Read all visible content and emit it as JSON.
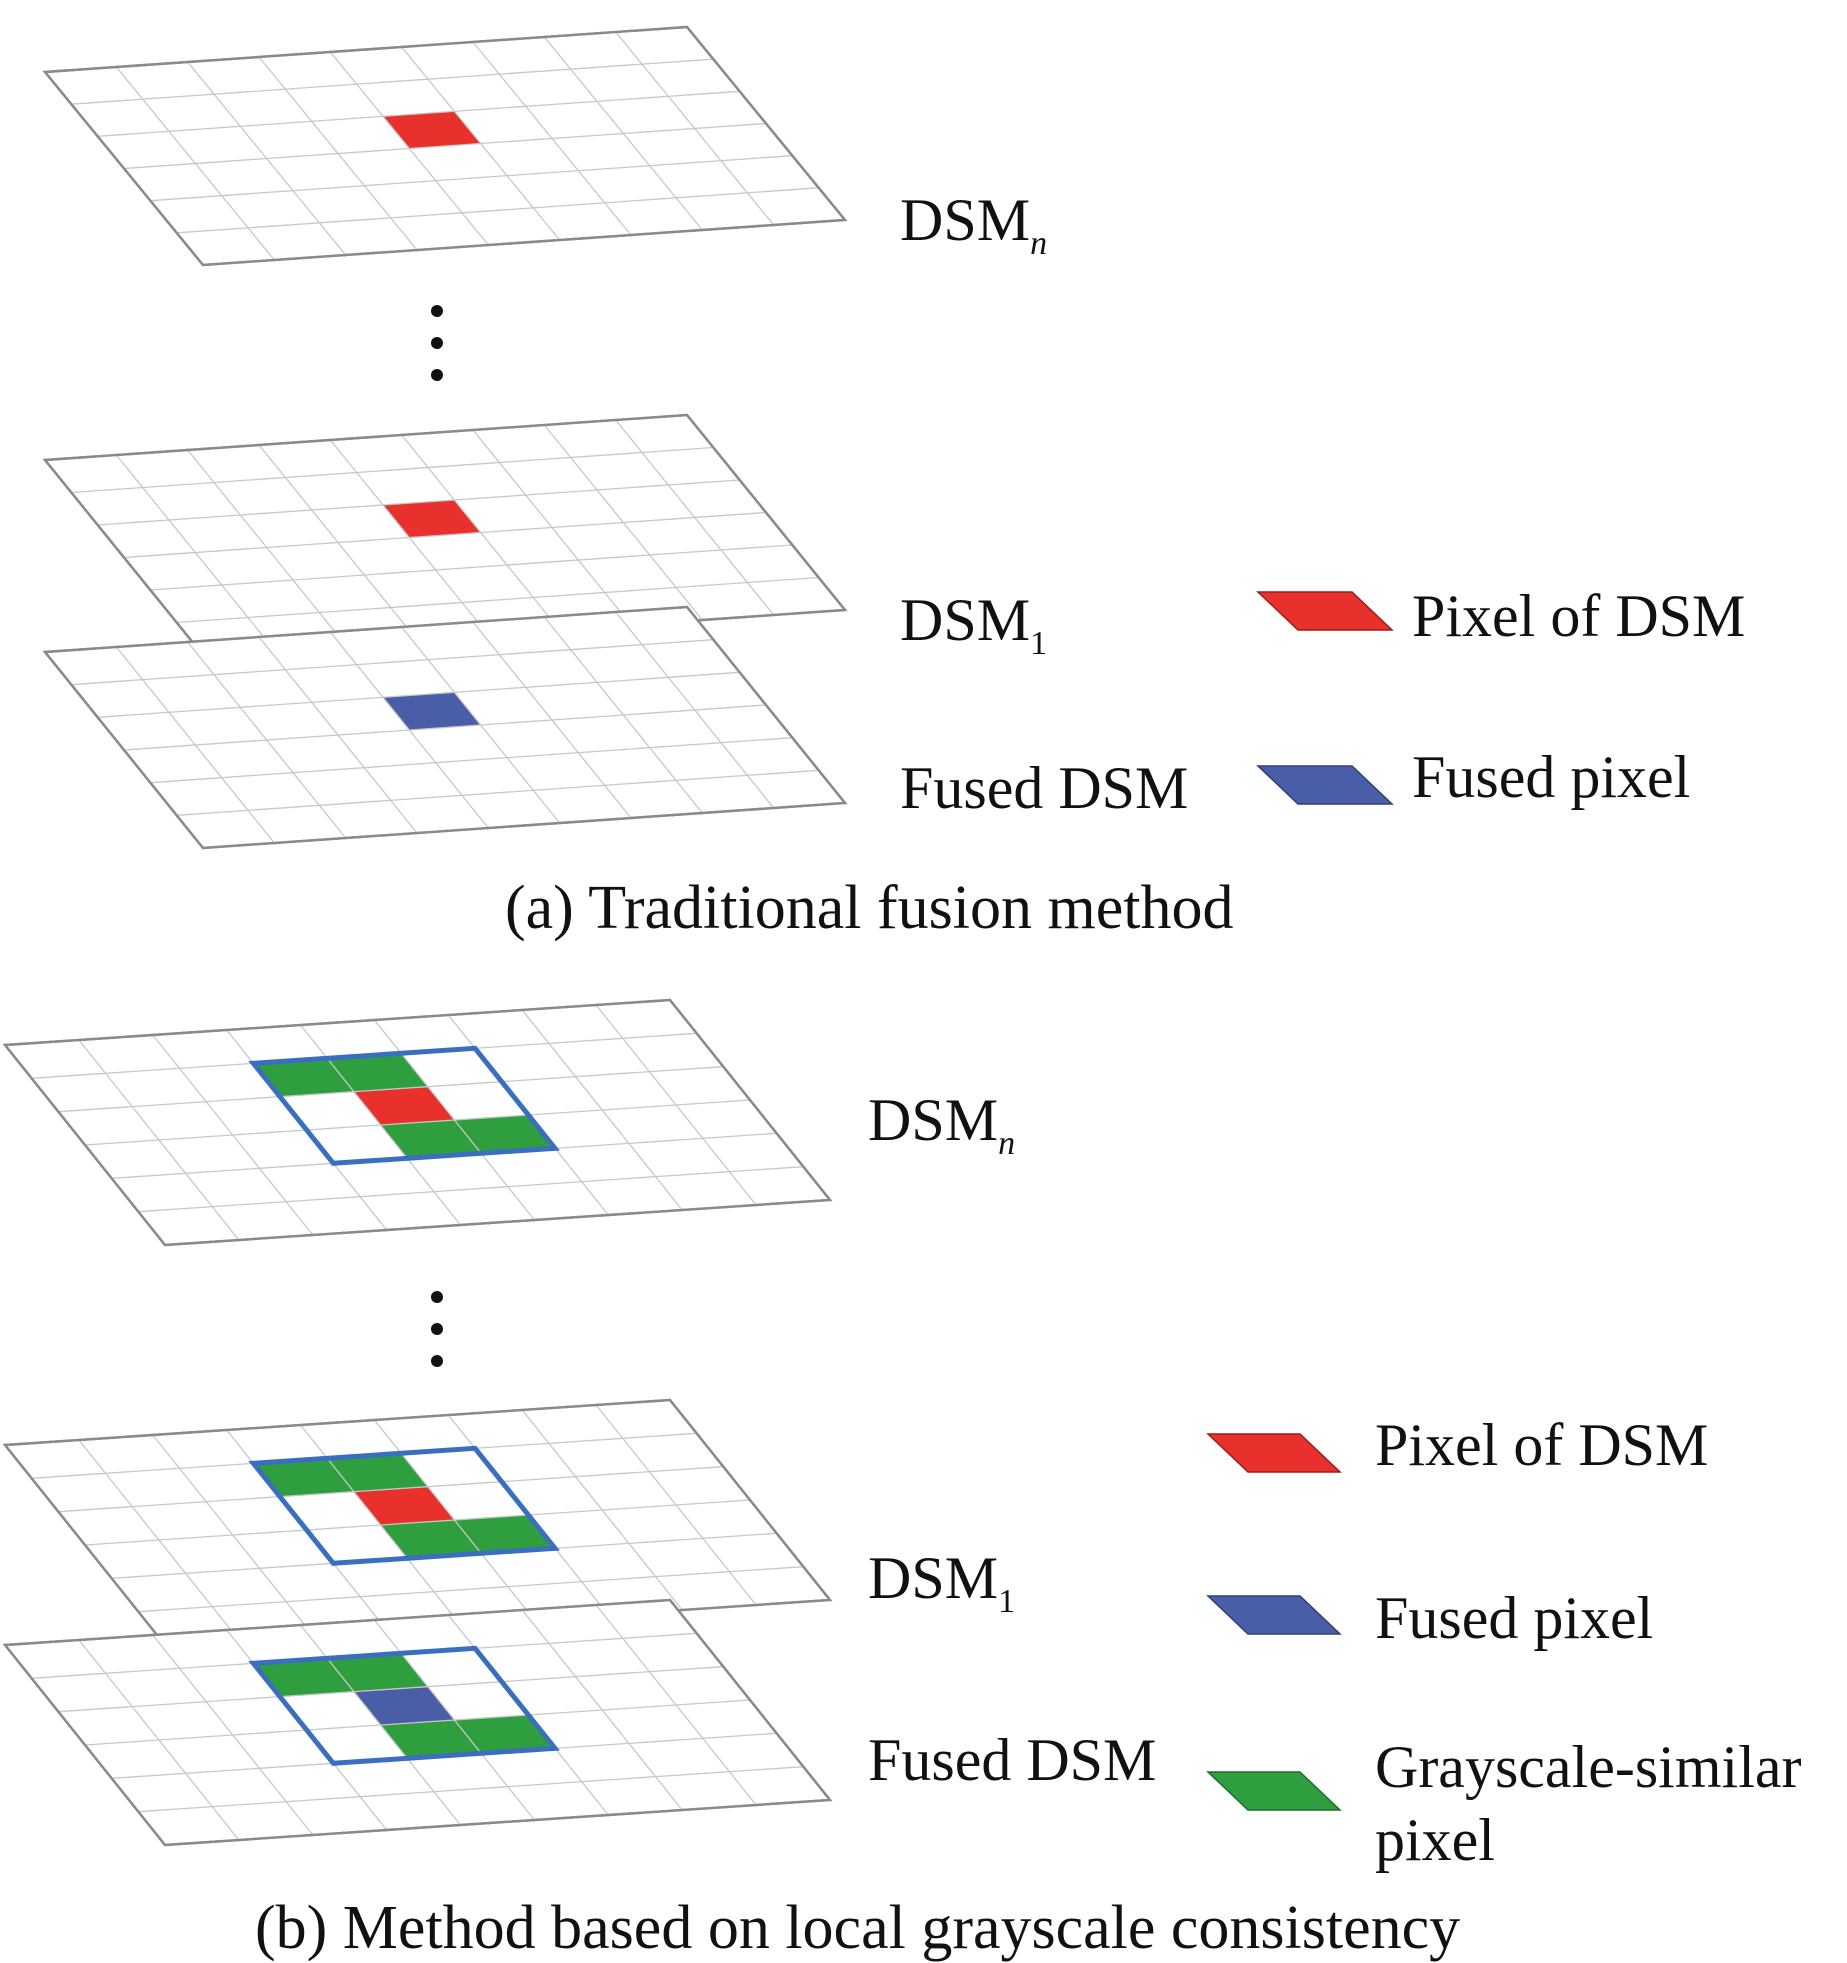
{
  "colors": {
    "pixel_of_dsm": "#e8302c",
    "fused_pixel": "#4a5ea8",
    "grayscale_similar": "#2f9e3f",
    "window_outline": "#3a6fc0"
  },
  "panel_a": {
    "layers": [
      {
        "base": "DSM",
        "sub": "n",
        "sub_italic": true
      },
      {
        "base": "DSM",
        "sub": "1",
        "sub_italic": false
      },
      {
        "base": "Fused DSM",
        "sub": "",
        "sub_italic": false
      }
    ],
    "legend": [
      {
        "label": "Pixel of DSM",
        "icon": "red-pixel-icon"
      },
      {
        "label": "Fused pixel",
        "icon": "blue-pixel-icon"
      }
    ],
    "caption": "(a) Traditional fusion method"
  },
  "panel_b": {
    "layers": [
      {
        "base": "DSM",
        "sub": "n",
        "sub_italic": true
      },
      {
        "base": "DSM",
        "sub": "1",
        "sub_italic": false
      },
      {
        "base": "Fused DSM",
        "sub": "",
        "sub_italic": false
      }
    ],
    "legend": [
      {
        "label": "Pixel of DSM",
        "icon": "red-pixel-icon"
      },
      {
        "label": "Fused pixel",
        "icon": "blue-pixel-icon"
      },
      {
        "label": "Grayscale-similar",
        "label2": "pixel",
        "icon": "green-pixel-icon"
      }
    ],
    "caption": "(b) Method based on local grayscale consistency"
  }
}
